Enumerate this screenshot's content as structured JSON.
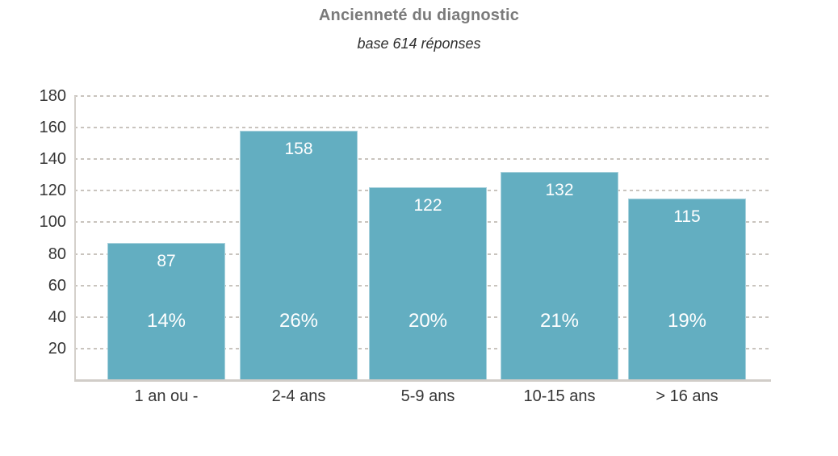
{
  "header": {
    "title": "Ancienneté du diagnostic",
    "subtitle": "base 614 réponses"
  },
  "chart_data": {
    "type": "bar",
    "title": "Ancienneté du diagnostic",
    "subtitle": "base 614 réponses",
    "categories": [
      "1 an ou -",
      "2-4 ans",
      "5-9 ans",
      "10-15 ans",
      "> 16 ans"
    ],
    "values": [
      87,
      158,
      122,
      132,
      115
    ],
    "percent_labels": [
      "14%",
      "26%",
      "20%",
      "21%",
      "19%"
    ],
    "value_labels": [
      "87",
      "158",
      "122",
      "132",
      "115"
    ],
    "yticks": [
      20,
      40,
      60,
      80,
      100,
      120,
      140,
      160,
      180
    ],
    "ylim": [
      0,
      180
    ],
    "xlabel": "",
    "ylabel": "",
    "grid": "horizontal-dotted",
    "legend": "none",
    "colors": {
      "bar": "#63aec1",
      "bar_label_text": "#ffffff",
      "gridline": "#c9c4be",
      "axis_line": "#d1cdc8",
      "tick_text": "#363636",
      "title_text": "#7a7a7a",
      "subtitle_text": "#2f2f2f",
      "background": "#ffffff"
    }
  }
}
